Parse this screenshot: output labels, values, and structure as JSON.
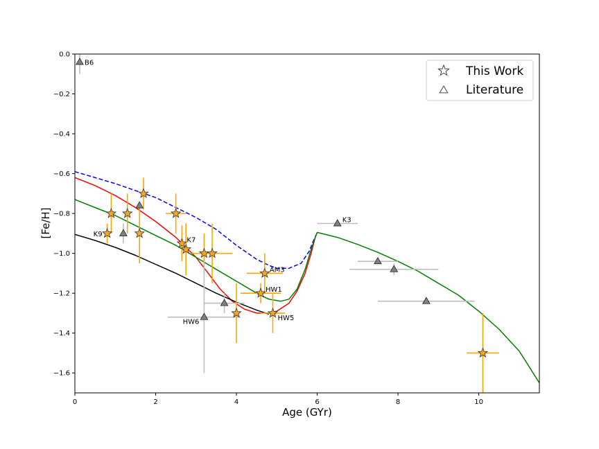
{
  "chart_data": {
    "type": "scatter",
    "xlabel": "Age (GYr)",
    "ylabel": "[Fe/H]",
    "xlim": [
      0,
      11.5
    ],
    "ylim": [
      -1.7,
      0.0
    ],
    "xticks": [
      0,
      2,
      4,
      6,
      8,
      10
    ],
    "yticks": [
      0.0,
      -0.2,
      -0.4,
      -0.6,
      -0.8,
      -1.0,
      -1.2,
      -1.4,
      -1.6
    ],
    "xtick_labels": [
      "0",
      "2",
      "4",
      "6",
      "8",
      "10"
    ],
    "ytick_labels": [
      "0.0",
      "−0.2",
      "−0.4",
      "−0.6",
      "−0.8",
      "−1.0",
      "−1.2",
      "−1.4",
      "−1.6"
    ],
    "grid": false,
    "legend": {
      "placement": "top-right",
      "entries": [
        {
          "label": "This Work",
          "marker": "star"
        },
        {
          "label": "Literature",
          "marker": "triangle"
        }
      ]
    },
    "colors": {
      "this_work_fill": "#f5a623",
      "this_work_err": "#ffa500",
      "literature_fill": "#808080",
      "literature_err": "#bdbdbd",
      "blue_dashed": "#0000ff",
      "red": "#ff0000",
      "green": "#008000",
      "black": "#000000"
    },
    "series": [
      {
        "marker": "star",
        "points": [
          {
            "x": 0.8,
            "y": -0.9,
            "xerr": 0.0,
            "yerr": 0.05
          },
          {
            "x": 0.9,
            "y": -0.8,
            "xerr": 0.0,
            "yerr": 0.1
          },
          {
            "x": 1.3,
            "y": -0.8,
            "xerr": 0.0,
            "yerr": 0.1
          },
          {
            "x": 1.6,
            "y": -0.9,
            "xerr": 0.0,
            "yerr": 0.15
          },
          {
            "x": 1.7,
            "y": -0.7,
            "xerr": 0.0,
            "yerr": 0.08
          },
          {
            "x": 2.5,
            "y": -0.8,
            "xerr": 0.25,
            "yerr": 0.1
          },
          {
            "x": 2.65,
            "y": -0.95,
            "xerr": 0.0,
            "yerr": 0.09
          },
          {
            "x": 2.75,
            "y": -0.98,
            "xerr": 0.0,
            "yerr": 0.13
          },
          {
            "x": 3.2,
            "y": -1.0,
            "xerr": 0.0,
            "yerr": 0.1
          },
          {
            "x": 3.4,
            "y": -1.0,
            "xerr": 0.5,
            "yerr": 0.15
          },
          {
            "x": 4.0,
            "y": -1.3,
            "xerr": 0.0,
            "yerr": 0.15
          },
          {
            "x": 4.6,
            "y": -1.2,
            "xerr": 0.5,
            "yerr": 0.05
          },
          {
            "x": 4.7,
            "y": -1.1,
            "xerr": 0.45,
            "yerr": 0.1
          },
          {
            "x": 4.9,
            "y": -1.3,
            "xerr": 0.3,
            "yerr": 0.1
          },
          {
            "x": 10.1,
            "y": -1.5,
            "xerr": 0.4,
            "yerr": 0.2
          }
        ]
      },
      {
        "marker": "triangle",
        "points": [
          {
            "x": 0.12,
            "y": -0.04,
            "xerr": 0.0,
            "yerr": 0.06
          },
          {
            "x": 1.2,
            "y": -0.9,
            "xerr": 0.0,
            "yerr": 0.05
          },
          {
            "x": 1.6,
            "y": -0.76,
            "xerr": 0.0,
            "yerr": 0.0
          },
          {
            "x": 3.2,
            "y": -1.32,
            "xerr": 0.9,
            "yerr": 0.28
          },
          {
            "x": 3.7,
            "y": -1.25,
            "xerr": 0.5,
            "yerr": 0.05
          },
          {
            "x": 6.5,
            "y": -0.85,
            "xerr": 0.5,
            "yerr": 0.0
          },
          {
            "x": 7.5,
            "y": -1.04,
            "xerr": 0.5,
            "yerr": 0.0
          },
          {
            "x": 7.9,
            "y": -1.08,
            "xerr": 1.1,
            "yerr": 0.03
          },
          {
            "x": 8.7,
            "y": -1.24,
            "xerr": 1.2,
            "yerr": 0.0
          }
        ]
      }
    ],
    "curves": [
      {
        "style": "dashed",
        "color": "blue_dashed",
        "x": [
          0,
          1,
          2,
          3,
          3.5,
          4,
          4.5,
          4.8,
          5,
          5.3,
          5.6,
          5.8,
          5.9,
          6.0
        ],
        "y": [
          -0.59,
          -0.65,
          -0.72,
          -0.82,
          -0.88,
          -0.96,
          -1.03,
          -1.06,
          -1.075,
          -1.075,
          -1.05,
          -0.99,
          -0.94,
          -0.895
        ]
      },
      {
        "style": "solid",
        "color": "red",
        "x": [
          0,
          0.5,
          1,
          1.5,
          2,
          2.5,
          3,
          3.3,
          3.6,
          3.9,
          4.2,
          4.5,
          4.8,
          5.0,
          5.3,
          5.5,
          5.7,
          5.85,
          5.95,
          6.0
        ],
        "y": [
          -0.62,
          -0.66,
          -0.71,
          -0.77,
          -0.84,
          -0.92,
          -1.02,
          -1.1,
          -1.18,
          -1.24,
          -1.28,
          -1.3,
          -1.3,
          -1.29,
          -1.25,
          -1.19,
          -1.1,
          -1.0,
          -0.92,
          -0.895
        ]
      },
      {
        "style": "solid",
        "color": "green",
        "x": [
          0,
          0.5,
          1,
          1.5,
          2,
          2.5,
          3,
          3.5,
          4,
          4.5,
          4.8,
          5.1,
          5.3,
          5.5,
          5.7,
          5.85,
          5.95,
          6.0
        ],
        "y": [
          -0.73,
          -0.77,
          -0.81,
          -0.86,
          -0.91,
          -0.96,
          -1.02,
          -1.08,
          -1.14,
          -1.2,
          -1.23,
          -1.24,
          -1.23,
          -1.18,
          -1.08,
          -0.98,
          -0.92,
          -0.895
        ]
      },
      {
        "style": "solid",
        "color": "black",
        "x": [
          0,
          0.5,
          1,
          1.5,
          2,
          2.5,
          3,
          3.5,
          4,
          4.5,
          4.8
        ],
        "y": [
          -0.905,
          -0.935,
          -0.97,
          -1.01,
          -1.055,
          -1.1,
          -1.15,
          -1.2,
          -1.245,
          -1.285,
          -1.305
        ]
      },
      {
        "style": "solid",
        "color": "green",
        "x": [
          6.0,
          6.5,
          7,
          7.5,
          8,
          8.5,
          9,
          9.5,
          10,
          10.5,
          11,
          11.5
        ],
        "y": [
          -0.895,
          -0.92,
          -0.955,
          -0.995,
          -1.04,
          -1.09,
          -1.15,
          -1.21,
          -1.29,
          -1.38,
          -1.49,
          -1.65
        ]
      }
    ],
    "annotations": [
      {
        "text": "B6",
        "x": 0.12,
        "y": -0.04,
        "anchor": "start",
        "dx": 1,
        "dy": 0
      },
      {
        "text": "K9",
        "x": 0.8,
        "y": -0.9,
        "anchor": "end",
        "dx": -1,
        "dy": 0
      },
      {
        "text": "K7",
        "x": 2.65,
        "y": -0.95,
        "anchor": "start",
        "dx": 1,
        "dy": -1
      },
      {
        "text": "AM3",
        "x": 4.7,
        "y": -1.1,
        "anchor": "start",
        "dx": 1,
        "dy": -1
      },
      {
        "text": "HW1",
        "x": 4.6,
        "y": -1.2,
        "anchor": "start",
        "dx": 1,
        "dy": -1
      },
      {
        "text": "HW5",
        "x": 4.9,
        "y": -1.3,
        "anchor": "start",
        "dx": 1,
        "dy": 1
      },
      {
        "text": "HW6",
        "x": 3.2,
        "y": -1.32,
        "anchor": "end",
        "dx": -1,
        "dy": 1
      },
      {
        "text": "K3",
        "x": 6.5,
        "y": -0.85,
        "anchor": "start",
        "dx": 1,
        "dy": -1
      }
    ]
  }
}
